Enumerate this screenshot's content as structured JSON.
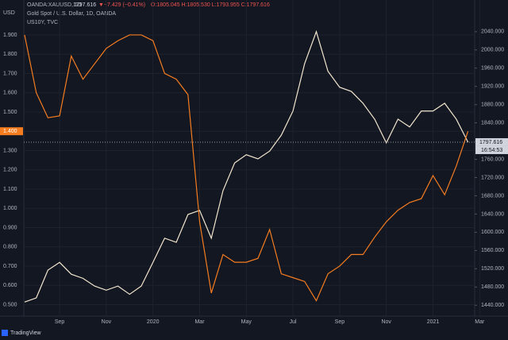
{
  "chart_data": {
    "type": "line",
    "toolbar": {
      "symbol": "OANDA:XAUUSD, 1D",
      "price": "1797.616",
      "change": "▼−7.429 (−0.41%)",
      "ohlc": "O:1805.045 H:1805.530 L:1793.955 C:1797.616"
    },
    "currency": "USD",
    "brand": "TradingView",
    "categories": [
      null,
      null,
      null,
      "Sep",
      null,
      null,
      null,
      "Nov",
      null,
      null,
      null,
      "2020",
      null,
      null,
      null,
      "Mar",
      null,
      null,
      null,
      "May",
      null,
      null,
      null,
      "Jul",
      null,
      null,
      null,
      "Sep",
      null,
      null,
      null,
      "Nov",
      null,
      null,
      null,
      "2021",
      null,
      null,
      null,
      "Mar"
    ],
    "series": [
      {
        "name": "Gold Spot / U.S. Dollar, 1D, OANDA",
        "color": "#f3e6cf",
        "axis": "y2",
        "values": [
          1447,
          1456,
          1517,
          1534,
          1508,
          1499,
          1482,
          1473,
          1482,
          1464,
          1482,
          1534,
          1587,
          1578,
          1639,
          1648,
          1587,
          1691,
          1752,
          1770,
          1761,
          1778,
          1813,
          1866,
          1970,
          2040,
          1953,
          1918,
          1909,
          1883,
          1848,
          1796,
          1848,
          1831,
          1866,
          1866,
          1883,
          1848,
          1797.616,
          null
        ]
      },
      {
        "name": "US10Y, TVC",
        "color": "#f57c1f",
        "values": [
          1.9,
          1.6,
          1.47,
          1.48,
          1.79,
          1.67,
          1.75,
          1.83,
          1.87,
          1.9,
          1.9,
          1.87,
          1.7,
          1.67,
          1.59,
          0.93,
          0.56,
          0.76,
          0.72,
          0.72,
          0.74,
          0.89,
          0.66,
          0.64,
          0.62,
          0.52,
          0.66,
          0.7,
          0.76,
          0.76,
          0.85,
          0.93,
          0.99,
          1.03,
          1.05,
          1.17,
          1.07,
          1.22,
          1.4,
          null
        ]
      }
    ],
    "ylim": [
      0.44,
      2.04
    ],
    "yticks": [
      {
        "value": 0.5,
        "label": "0.500"
      },
      {
        "value": 0.6,
        "label": "0.600"
      },
      {
        "value": 0.7,
        "label": "0.700"
      },
      {
        "value": 0.8,
        "label": "0.800"
      },
      {
        "value": 0.9,
        "label": "0.900"
      },
      {
        "value": 1.0,
        "label": "1.000"
      },
      {
        "value": 1.1,
        "label": "1.100"
      },
      {
        "value": 1.2,
        "label": "1.200"
      },
      {
        "value": 1.3,
        "label": "1.300"
      },
      {
        "value": 1.4,
        "label": "1.400"
      },
      {
        "value": 1.5,
        "label": "1.500"
      },
      {
        "value": 1.6,
        "label": "1.600"
      },
      {
        "value": 1.7,
        "label": "1.700"
      },
      {
        "value": 1.8,
        "label": "1.800"
      },
      {
        "value": 1.9,
        "label": "1.900"
      }
    ],
    "y2lim": [
      1416,
      2092
    ],
    "y2ticks": [
      {
        "value": 1440,
        "label": "1440.000"
      },
      {
        "value": 1480,
        "label": "1480.000"
      },
      {
        "value": 1520,
        "label": "1520.000"
      },
      {
        "value": 1560,
        "label": "1560.000"
      },
      {
        "value": 1600,
        "label": "1600.000"
      },
      {
        "value": 1640,
        "label": "1640.000"
      },
      {
        "value": 1680,
        "label": "1680.000"
      },
      {
        "value": 1720,
        "label": "1720.000"
      },
      {
        "value": 1760,
        "label": "1760.000"
      },
      {
        "value": 1800,
        "label": "1800.000"
      },
      {
        "value": 1840,
        "label": "1840.000"
      },
      {
        "value": 1880,
        "label": "1880.000"
      },
      {
        "value": 1920,
        "label": "1920.000"
      },
      {
        "value": 1960,
        "label": "1960.000"
      },
      {
        "value": 2000,
        "label": "2000.000"
      },
      {
        "value": 2040,
        "label": "2040.000"
      }
    ],
    "last_left": {
      "value": 1.4,
      "label": "1.400"
    },
    "last_right": {
      "value": 1797.616,
      "label": "1797.616"
    },
    "countdown": "16:54:53"
  }
}
